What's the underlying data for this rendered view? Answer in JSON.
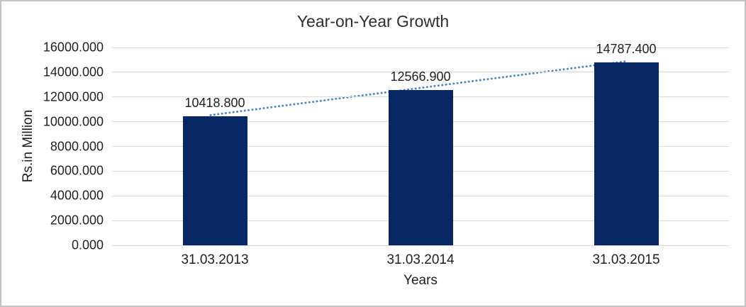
{
  "chart_data": {
    "type": "bar",
    "title": "Year-on-Year Growth",
    "xlabel": "Years",
    "ylabel": "Rs.in Million",
    "categories": [
      "31.03.2013",
      "31.03.2014",
      "31.03.2015"
    ],
    "values": [
      10418.8,
      12566.9,
      14787.4
    ],
    "data_labels": [
      "10418.800",
      "12566.900",
      "14787.400"
    ],
    "y_ticks": [
      "0.000",
      "2000.000",
      "4000.000",
      "6000.000",
      "8000.000",
      "10000.000",
      "12000.000",
      "14000.000",
      "16000.000"
    ],
    "ylim": [
      0,
      16000
    ],
    "grid": true,
    "legend": "none",
    "trendline": {
      "style": "dotted",
      "from_value": 10418.8,
      "to_value": 14787.4
    },
    "colors": {
      "bar": "#072765",
      "trendline": "#4a86c8",
      "gridline": "#d9d9d9",
      "text": "#1f1f1f",
      "frame_border": "#c4c4c4"
    }
  }
}
